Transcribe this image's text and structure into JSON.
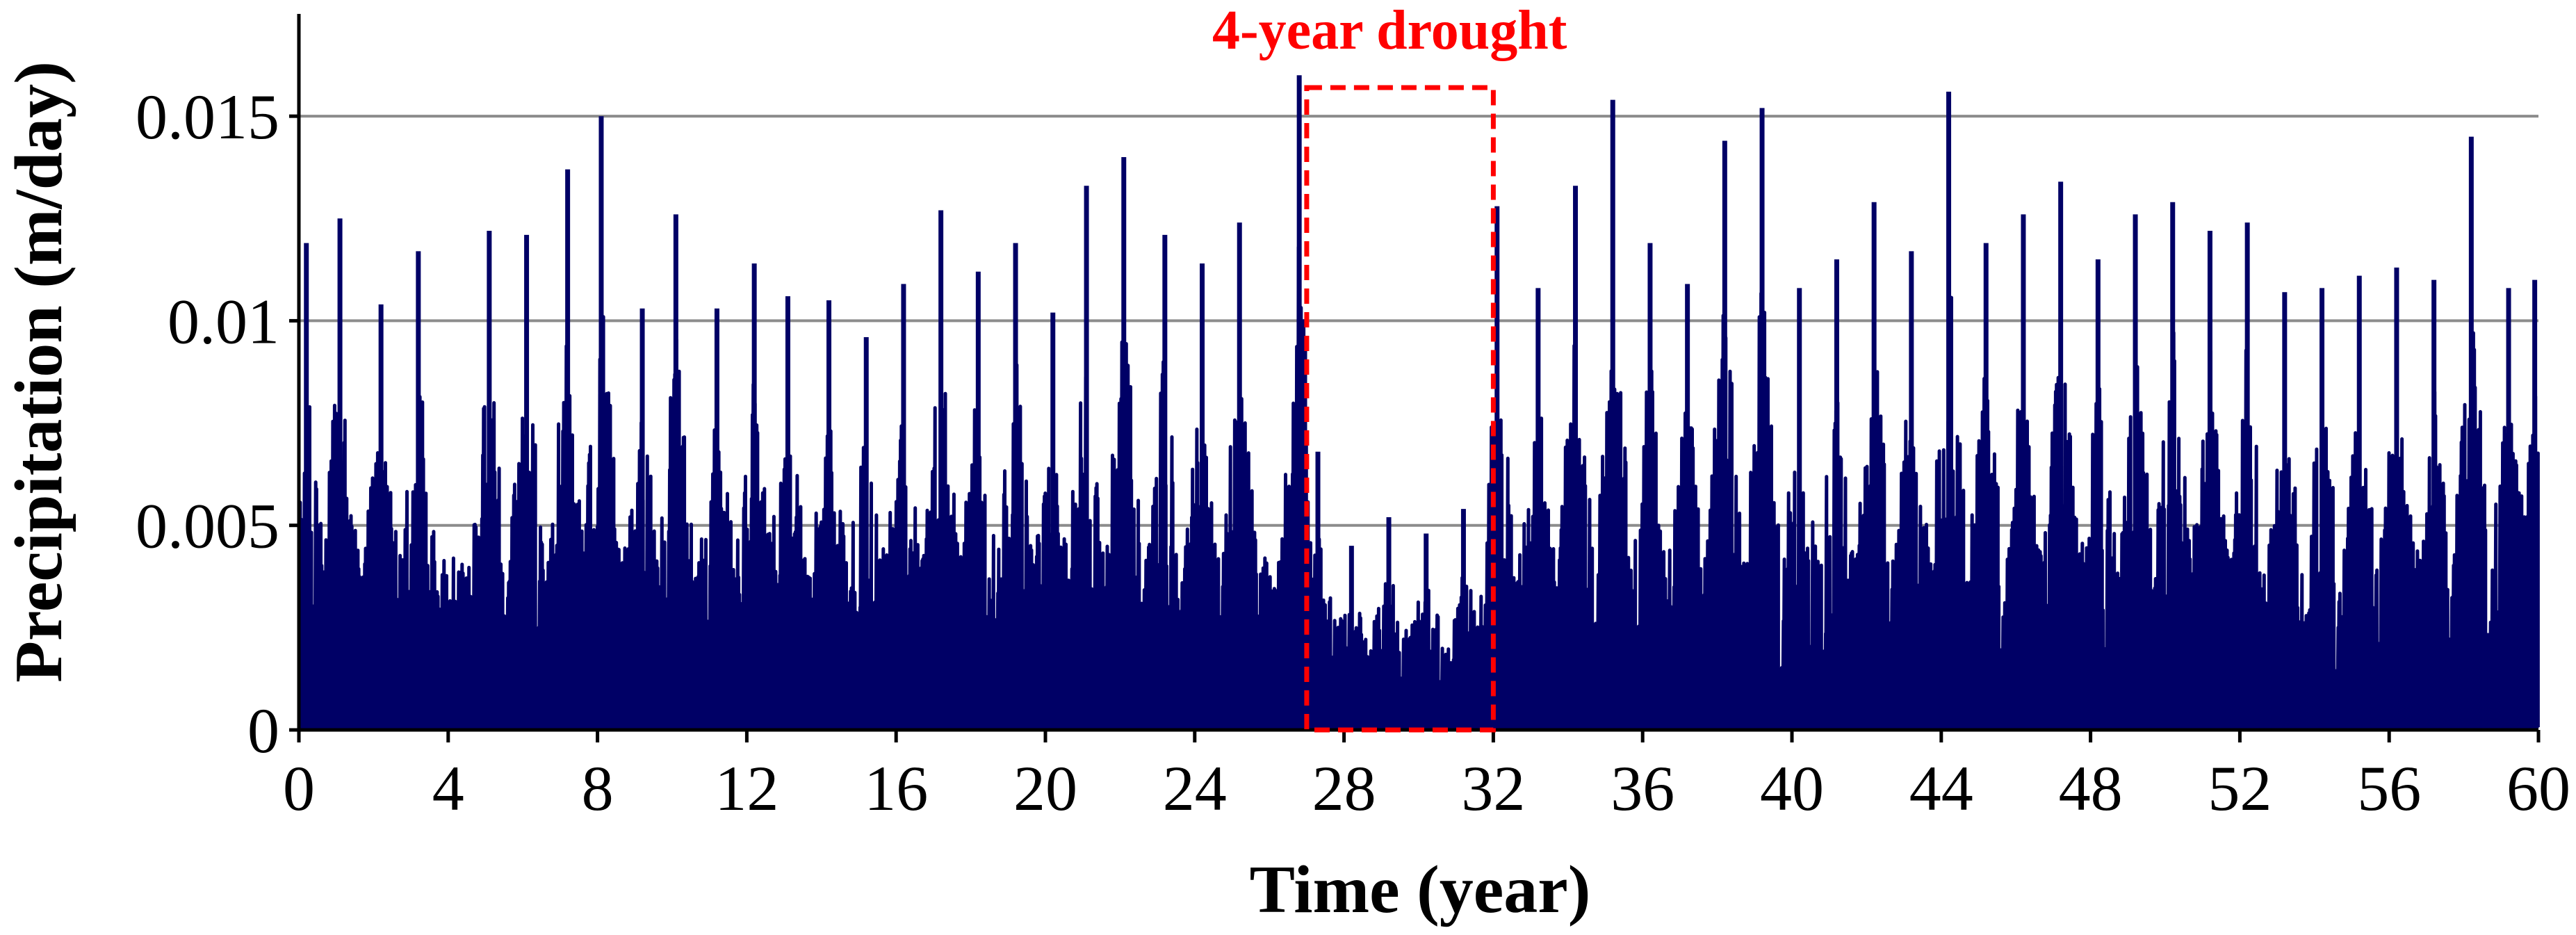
{
  "chart_data": {
    "type": "area",
    "title": "",
    "xlabel": "Time (year)",
    "ylabel": "Precipitation (m/day)",
    "xlim": [
      0,
      60
    ],
    "ylim": [
      0,
      0.0175
    ],
    "x_ticks": [
      "0",
      "4",
      "8",
      "12",
      "16",
      "20",
      "24",
      "28",
      "32",
      "36",
      "40",
      "44",
      "48",
      "52",
      "56",
      "60"
    ],
    "y_ticks": [
      "0",
      "0.005",
      "0.01",
      "0.015"
    ],
    "y_tick_values": [
      0,
      0.005,
      0.01,
      0.015
    ],
    "grid": "horizontal",
    "series_color": "#000066",
    "annotation": {
      "text": "4-year drought",
      "x_start": 27,
      "x_end": 32,
      "y_top": 0.0157,
      "color": "#ff0000"
    },
    "series": [
      {
        "peaks": [
          {
            "x": 0.2,
            "y": 0.0119
          },
          {
            "x": 1.1,
            "y": 0.0125
          },
          {
            "x": 2.2,
            "y": 0.0104
          },
          {
            "x": 3.2,
            "y": 0.0117
          },
          {
            "x": 5.1,
            "y": 0.0122
          },
          {
            "x": 6.1,
            "y": 0.0121
          },
          {
            "x": 7.2,
            "y": 0.0137
          },
          {
            "x": 8.1,
            "y": 0.015
          },
          {
            "x": 9.2,
            "y": 0.0103
          },
          {
            "x": 10.1,
            "y": 0.0126
          },
          {
            "x": 11.2,
            "y": 0.0103
          },
          {
            "x": 12.2,
            "y": 0.0114
          },
          {
            "x": 13.1,
            "y": 0.0106
          },
          {
            "x": 14.2,
            "y": 0.0105
          },
          {
            "x": 15.2,
            "y": 0.0096
          },
          {
            "x": 16.2,
            "y": 0.0109
          },
          {
            "x": 17.2,
            "y": 0.0127
          },
          {
            "x": 18.2,
            "y": 0.0112
          },
          {
            "x": 19.2,
            "y": 0.0119
          },
          {
            "x": 20.2,
            "y": 0.0102
          },
          {
            "x": 21.1,
            "y": 0.0133
          },
          {
            "x": 22.1,
            "y": 0.014
          },
          {
            "x": 23.2,
            "y": 0.0121
          },
          {
            "x": 24.2,
            "y": 0.0114
          },
          {
            "x": 25.2,
            "y": 0.0124
          },
          {
            "x": 26.8,
            "y": 0.016
          },
          {
            "x": 27.3,
            "y": 0.0068
          },
          {
            "x": 28.2,
            "y": 0.0045
          },
          {
            "x": 29.2,
            "y": 0.0052
          },
          {
            "x": 30.2,
            "y": 0.0048
          },
          {
            "x": 31.2,
            "y": 0.0054
          },
          {
            "x": 32.1,
            "y": 0.0128
          },
          {
            "x": 33.2,
            "y": 0.0108
          },
          {
            "x": 34.2,
            "y": 0.0133
          },
          {
            "x": 35.2,
            "y": 0.0154
          },
          {
            "x": 36.2,
            "y": 0.0119
          },
          {
            "x": 37.2,
            "y": 0.0109
          },
          {
            "x": 38.2,
            "y": 0.0144
          },
          {
            "x": 39.2,
            "y": 0.0152
          },
          {
            "x": 40.2,
            "y": 0.0108
          },
          {
            "x": 41.2,
            "y": 0.0115
          },
          {
            "x": 42.2,
            "y": 0.0129
          },
          {
            "x": 43.2,
            "y": 0.0117
          },
          {
            "x": 44.2,
            "y": 0.0156
          },
          {
            "x": 45.2,
            "y": 0.0119
          },
          {
            "x": 46.2,
            "y": 0.0126
          },
          {
            "x": 47.2,
            "y": 0.0134
          },
          {
            "x": 48.2,
            "y": 0.0115
          },
          {
            "x": 49.2,
            "y": 0.0126
          },
          {
            "x": 50.2,
            "y": 0.0129
          },
          {
            "x": 51.2,
            "y": 0.0122
          },
          {
            "x": 52.2,
            "y": 0.0124
          },
          {
            "x": 53.2,
            "y": 0.0107
          },
          {
            "x": 54.2,
            "y": 0.0108
          },
          {
            "x": 55.2,
            "y": 0.0111
          },
          {
            "x": 56.2,
            "y": 0.0113
          },
          {
            "x": 57.2,
            "y": 0.011
          },
          {
            "x": 58.2,
            "y": 0.0145
          },
          {
            "x": 59.2,
            "y": 0.0108
          },
          {
            "x": 59.9,
            "y": 0.011
          }
        ]
      }
    ]
  }
}
